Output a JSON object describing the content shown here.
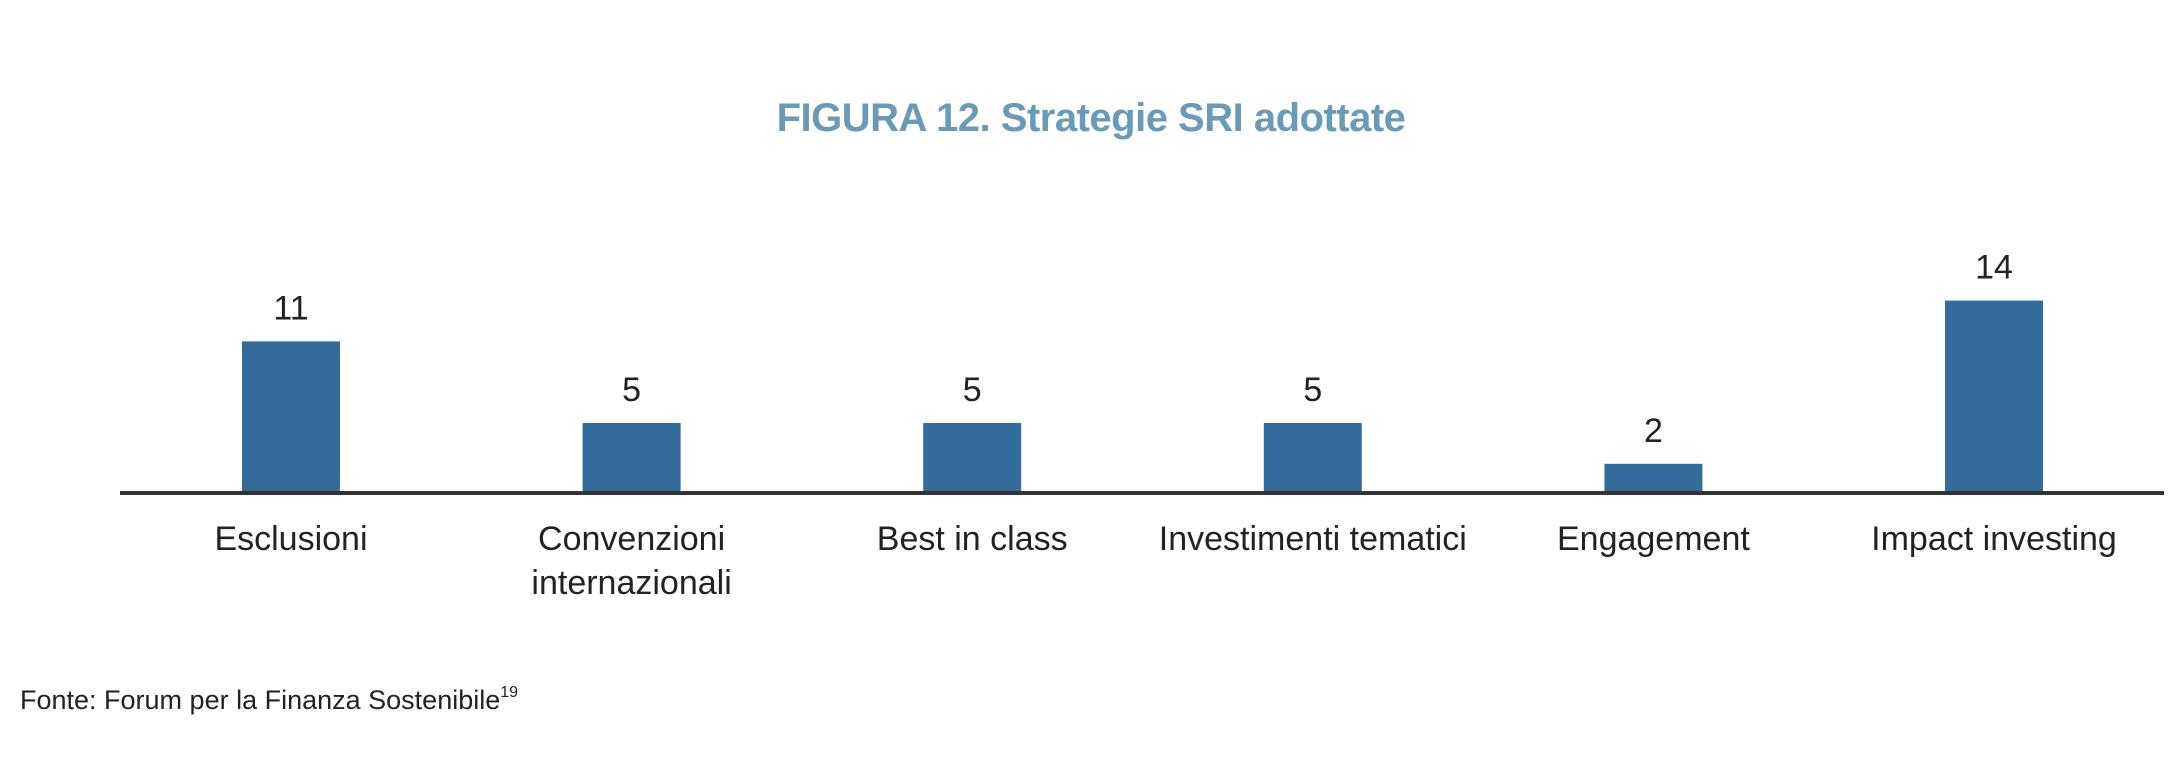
{
  "colors": {
    "title": "#6a9ab5",
    "bar": "#336b9a",
    "baseline": "#333333",
    "text": "#222222"
  },
  "chart_data": {
    "type": "bar",
    "title": "FIGURA 12. Strategie SRI adottate",
    "categories": [
      [
        "Esclusioni"
      ],
      [
        "Convenzioni",
        "internazionali"
      ],
      [
        "Best in class"
      ],
      [
        "Investimenti tematici"
      ],
      [
        "Engagement"
      ],
      [
        "Impact investing"
      ]
    ],
    "values": [
      11,
      5,
      5,
      5,
      2,
      14
    ],
    "data_labels": [
      "11",
      "5",
      "5",
      "5",
      "2",
      "14"
    ],
    "ylim": [
      0,
      14
    ],
    "grid": false,
    "legend": "none"
  },
  "source": {
    "text": "Fonte: Forum per la Finanza Sostenibile",
    "footnote": "19"
  }
}
